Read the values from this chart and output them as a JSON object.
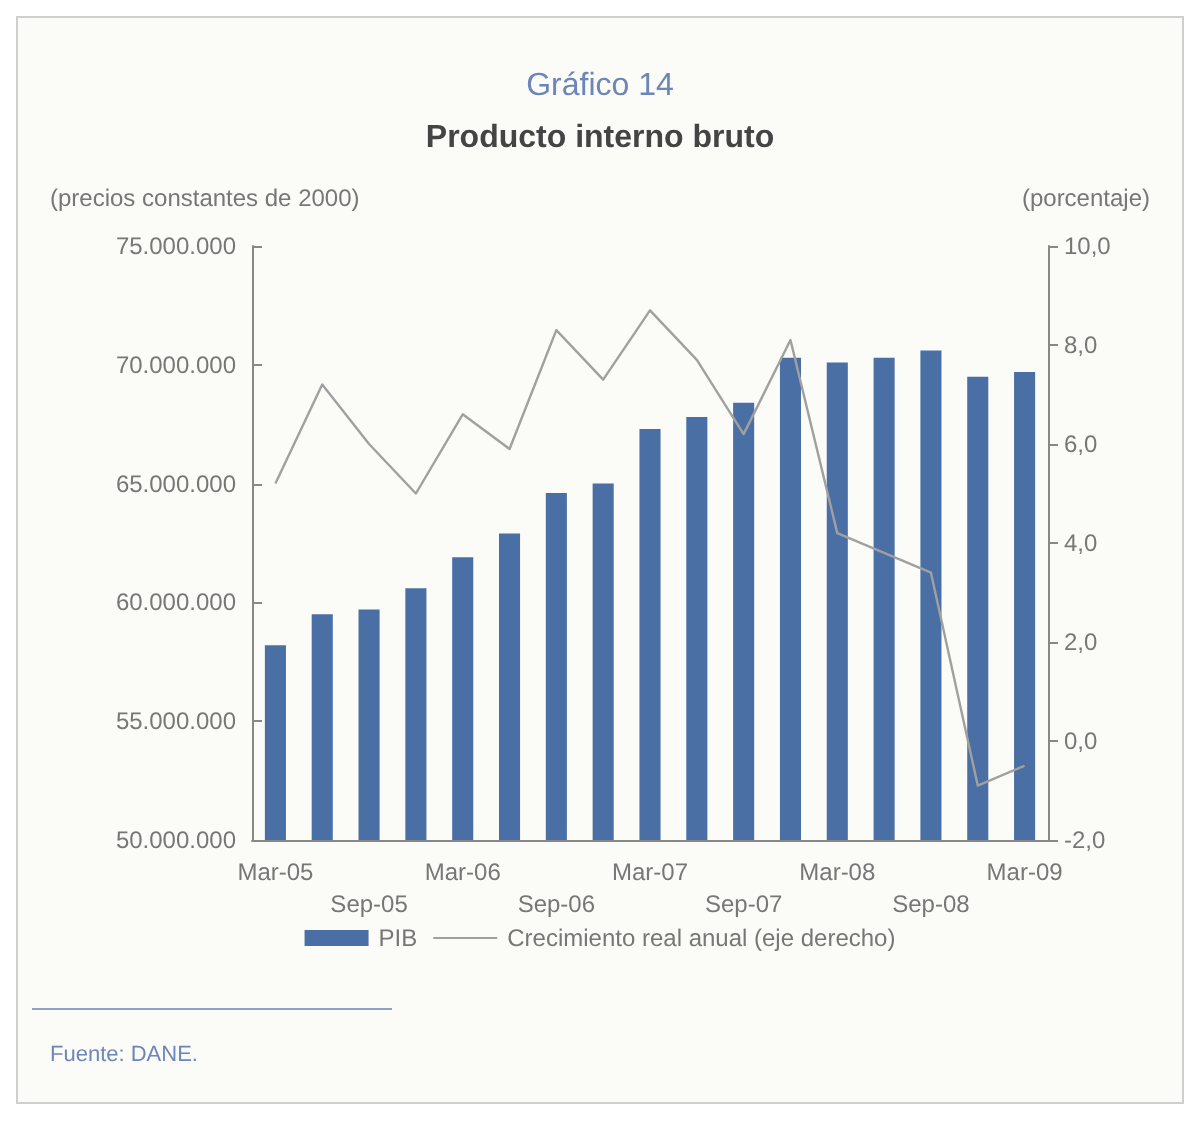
{
  "chart_data": {
    "type": "bar",
    "title": "Gráfico 14",
    "subtitle": "Producto interno bruto",
    "ylabel": "(precios constantes de 2000)",
    "y2label": "(porcentaje)",
    "categories": [
      "Mar-05",
      null,
      "Sep-05",
      null,
      "Mar-06",
      null,
      "Sep-06",
      null,
      "Mar-07",
      null,
      "Sep-07",
      null,
      "Mar-08",
      null,
      "Sep-08",
      null,
      "Mar-09"
    ],
    "series": [
      {
        "name": "PIB",
        "color": "#4a6fa5",
        "values": [
          58200000,
          59500000,
          59700000,
          60600000,
          61900000,
          62900000,
          64600000,
          65000000,
          67300000,
          67800000,
          68400000,
          70300000,
          70100000,
          70300000,
          70600000,
          69500000,
          69700000
        ]
      },
      {
        "name": "Crecimiento real anual (eje derecho)",
        "type": "line",
        "axis": "y2",
        "color": "#a0a0a0",
        "values": [
          5.2,
          7.2,
          6.0,
          5.0,
          6.6,
          5.9,
          8.3,
          7.3,
          8.7,
          7.7,
          6.2,
          8.1,
          4.2,
          3.8,
          3.4,
          -0.9,
          -0.5
        ]
      }
    ],
    "ylim": [
      50000000,
      75000000
    ],
    "yticks": [
      {
        "value": 50000000,
        "label": "50.000.000"
      },
      {
        "value": 55000000,
        "label": "55.000.000"
      },
      {
        "value": 60000000,
        "label": "60.000.000"
      },
      {
        "value": 65000000,
        "label": "65.000.000"
      },
      {
        "value": 70000000,
        "label": "70.000.000"
      },
      {
        "value": 75000000,
        "label": "75.000.000"
      }
    ],
    "y2lim": [
      -2,
      10
    ],
    "y2ticks": [
      {
        "value": -2,
        "label": "-2,0"
      },
      {
        "value": 0,
        "label": "0,0"
      },
      {
        "value": 2,
        "label": "2,0"
      },
      {
        "value": 4,
        "label": "4,0"
      },
      {
        "value": 6,
        "label": "6,0"
      },
      {
        "value": 8,
        "label": "8,0"
      },
      {
        "value": 10,
        "label": "10,0"
      }
    ],
    "grid": false,
    "legend": "bottom",
    "marker": "none",
    "annotations": [
      "Fuente: DANE."
    ]
  }
}
